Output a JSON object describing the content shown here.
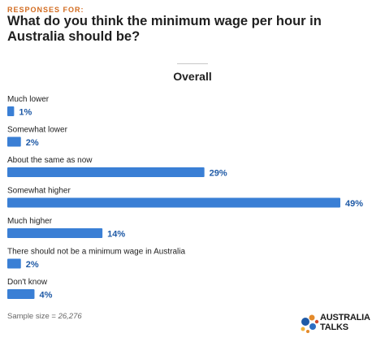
{
  "header": {
    "kicker": "RESPONSES FOR:",
    "question": "What do you think the minimum wage per hour in Australia should be?",
    "subtitle": "Overall"
  },
  "chart_data": {
    "type": "bar",
    "orientation": "horizontal",
    "categories": [
      "Much lower",
      "Somewhat lower",
      "About the same as now",
      "Somewhat higher",
      "Much higher",
      "There should not be a minimum wage in Australia",
      "Don't know"
    ],
    "values": [
      1,
      2,
      29,
      49,
      14,
      2,
      4
    ],
    "value_suffix": "%",
    "xlim": [
      0,
      49
    ],
    "grid": false,
    "bar_color": "#3a7fd5",
    "label_color": "#1f5aa6"
  },
  "footer": {
    "sample_label": "Sample size = ",
    "sample_value": "26,276"
  },
  "logo": {
    "line1": "AUSTRALIA",
    "line2": "TALKS"
  }
}
